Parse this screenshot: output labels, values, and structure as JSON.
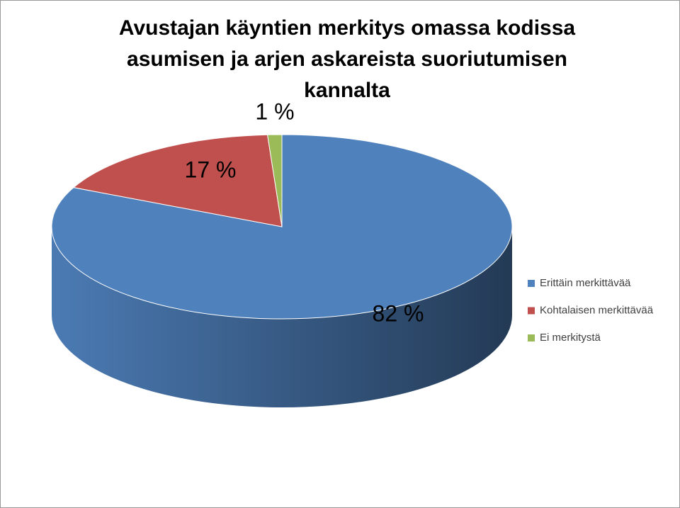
{
  "chart_data": {
    "type": "pie",
    "title": "Avustajan käyntien merkitys omassa kodissa asumisen ja arjen askareista suoriutumisen kannalta",
    "categories": [
      "Erittäin merkittävää",
      "Kohtalaisen merkittävää",
      "Ei merkitystä"
    ],
    "values": [
      82,
      17,
      1
    ],
    "value_labels": [
      "82 %",
      "17 %",
      "1 %"
    ],
    "colors": [
      "#4f81bd",
      "#c0504d",
      "#9bbb59"
    ],
    "legend": "right"
  }
}
